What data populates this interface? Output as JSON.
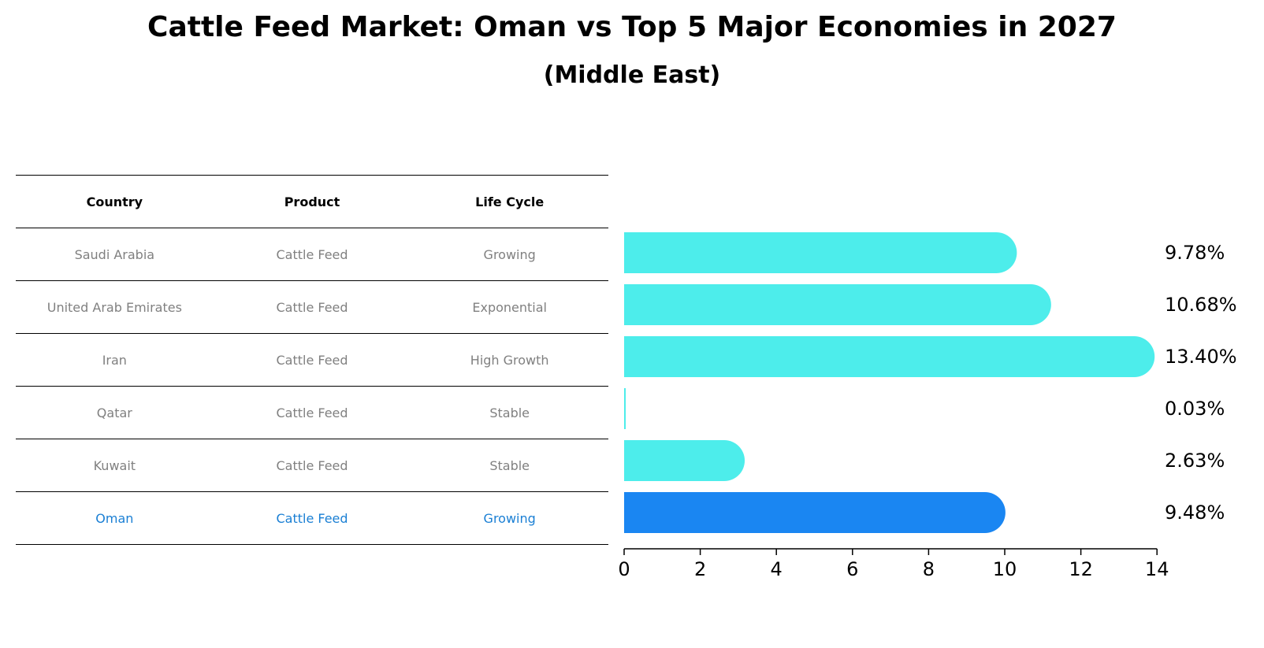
{
  "title": "Cattle Feed Market: Oman vs Top 5 Major Economies in 2027",
  "subtitle": "(Middle East)",
  "table": {
    "headers": [
      "Country",
      "Product",
      "Life Cycle"
    ],
    "rows": [
      [
        "Saudi Arabia",
        "Cattle Feed",
        "Growing"
      ],
      [
        "United Arab Emirates",
        "Cattle Feed",
        "Exponential"
      ],
      [
        "Iran",
        "Cattle Feed",
        "High Growth"
      ],
      [
        "Qatar",
        "Cattle Feed",
        "Stable"
      ],
      [
        "Kuwait",
        "Cattle Feed",
        "Stable"
      ],
      [
        "Oman",
        "Cattle Feed",
        "Growing"
      ]
    ],
    "highlight_row": 5
  },
  "colors": {
    "bar": "#4DEDEB",
    "highlight_bar": "#1A86F2",
    "highlight_text": "#1A7FD4"
  },
  "chart_data": {
    "type": "bar",
    "orientation": "horizontal",
    "categories": [
      "Saudi Arabia",
      "United Arab Emirates",
      "Iran",
      "Qatar",
      "Kuwait",
      "Oman"
    ],
    "values": [
      9.78,
      10.68,
      13.4,
      0.03,
      2.63,
      9.48
    ],
    "value_labels": [
      "9.78%",
      "10.68%",
      "13.40%",
      "0.03%",
      "2.63%",
      "9.48%"
    ],
    "xlim": [
      0,
      14
    ],
    "xticks": [
      0,
      2,
      4,
      6,
      8,
      10,
      12,
      14
    ],
    "grid": false
  }
}
